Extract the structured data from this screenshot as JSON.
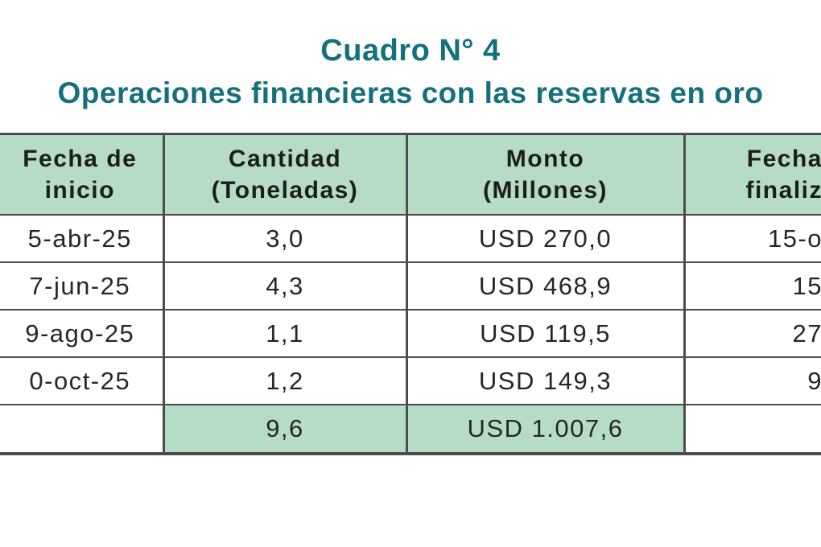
{
  "title": {
    "line1": "Cuadro N° 4",
    "line2": "Operaciones financieras con las reservas en oro"
  },
  "table": {
    "columns": [
      {
        "id": "fecha_inicio",
        "lines": [
          "Fecha de",
          "inicio"
        ]
      },
      {
        "id": "cantidad",
        "lines": [
          "Cantidad",
          "(Toneladas)"
        ]
      },
      {
        "id": "monto",
        "lines": [
          "Monto",
          "(Millones)"
        ]
      },
      {
        "id": "fecha_finalizacion",
        "lines": [
          "Fecha",
          "finaliz"
        ]
      }
    ],
    "rows": [
      {
        "fecha_inicio": "5-abr-25",
        "cantidad": "3,0",
        "monto": "USD 270,0",
        "fecha_finalizacion": "15-o"
      },
      {
        "fecha_inicio": "7-jun-25",
        "cantidad": "4,3",
        "monto": "USD 468,9",
        "fecha_finalizacion": "15"
      },
      {
        "fecha_inicio": "9-ago-25",
        "cantidad": "1,1",
        "monto": "USD 119,5",
        "fecha_finalizacion": "27"
      },
      {
        "fecha_inicio": "0-oct-25",
        "cantidad": "1,2",
        "monto": "USD 149,3",
        "fecha_finalizacion": "9"
      }
    ],
    "total": {
      "fecha_inicio": "",
      "cantidad": "9,6",
      "monto": "USD 1.007,6",
      "fecha_finalizacion": ""
    }
  },
  "colors": {
    "accent_teal": "#15707D",
    "header_green": "#B6DCC6",
    "border_gray": "#4C4C4C"
  }
}
